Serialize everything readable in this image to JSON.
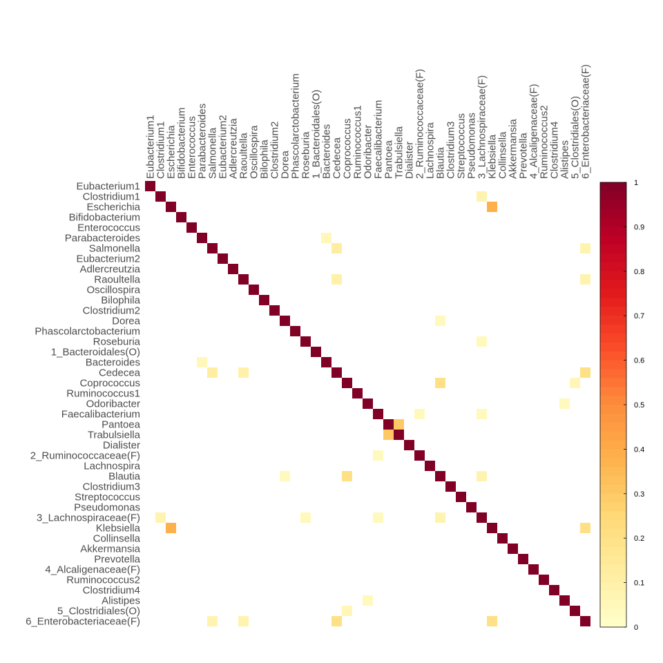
{
  "chart_data": {
    "type": "heatmap",
    "title": "",
    "xlabel": "",
    "ylabel": "",
    "labels": [
      "Eubacterium1",
      "Clostridium1",
      "Escherichia",
      "Bifidobacterium",
      "Enterococcus",
      "Parabacteroides",
      "Salmonella",
      "Eubacterium2",
      "Adlercreutzia",
      "Raoultella",
      "Oscillospira",
      "Bilophila",
      "Clostridium2",
      "Dorea",
      "Phascolarctobacterium",
      "Roseburia",
      "1_Bacteroidales(O)",
      "Bacteroides",
      "Cedecea",
      "Coprococcus",
      "Ruminococcus1",
      "Odoribacter",
      "Faecalibacterium",
      "Pantoea",
      "Trabulsiella",
      "Dialister",
      "2_Ruminococcaceae(F)",
      "Lachnospira",
      "Blautia",
      "Clostridium3",
      "Streptococcus",
      "Pseudomonas",
      "3_Lachnospiraceae(F)",
      "Klebsiella",
      "Collinsella",
      "Akkermansia",
      "Prevotella",
      "4_Alcaligenaceae(F)",
      "Ruminococcus2",
      "Clostridium4",
      "Alistipes",
      "5_Clostridiales(O)",
      "6_Enterobacteriaceae(F)"
    ],
    "diagonal": 1,
    "cells": [
      {
        "row": "Clostridium1",
        "col": "3_Lachnospiraceae(F)",
        "value": 0.08
      },
      {
        "row": "Escherichia",
        "col": "Klebsiella",
        "value": 0.38
      },
      {
        "row": "Parabacteroides",
        "col": "Bacteroides",
        "value": 0.05
      },
      {
        "row": "Salmonella",
        "col": "Cedecea",
        "value": 0.12
      },
      {
        "row": "Salmonella",
        "col": "6_Enterobacteriaceae(F)",
        "value": 0.08
      },
      {
        "row": "Raoultella",
        "col": "Cedecea",
        "value": 0.1
      },
      {
        "row": "Raoultella",
        "col": "6_Enterobacteriaceae(F)",
        "value": 0.08
      },
      {
        "row": "Dorea",
        "col": "Blautia",
        "value": 0.04
      },
      {
        "row": "Roseburia",
        "col": "3_Lachnospiraceae(F)",
        "value": 0.04
      },
      {
        "row": "Bacteroides",
        "col": "Parabacteroides",
        "value": 0.05
      },
      {
        "row": "Cedecea",
        "col": "Salmonella",
        "value": 0.12
      },
      {
        "row": "Cedecea",
        "col": "Raoultella",
        "value": 0.1
      },
      {
        "row": "Cedecea",
        "col": "6_Enterobacteriaceae(F)",
        "value": 0.2
      },
      {
        "row": "Coprococcus",
        "col": "Blautia",
        "value": 0.2
      },
      {
        "row": "Coprococcus",
        "col": "5_Clostridiales(O)",
        "value": 0.06
      },
      {
        "row": "Odoribacter",
        "col": "Alistipes",
        "value": 0.04
      },
      {
        "row": "Faecalibacterium",
        "col": "2_Ruminococcaceae(F)",
        "value": 0.04
      },
      {
        "row": "Faecalibacterium",
        "col": "3_Lachnospiraceae(F)",
        "value": 0.04
      },
      {
        "row": "Pantoea",
        "col": "Trabulsiella",
        "value": 0.3
      },
      {
        "row": "Trabulsiella",
        "col": "Pantoea",
        "value": 0.3
      },
      {
        "row": "2_Ruminococcaceae(F)",
        "col": "Faecalibacterium",
        "value": 0.04
      },
      {
        "row": "Blautia",
        "col": "Dorea",
        "value": 0.04
      },
      {
        "row": "Blautia",
        "col": "Coprococcus",
        "value": 0.2
      },
      {
        "row": "Blautia",
        "col": "3_Lachnospiraceae(F)",
        "value": 0.08
      },
      {
        "row": "3_Lachnospiraceae(F)",
        "col": "Clostridium1",
        "value": 0.08
      },
      {
        "row": "3_Lachnospiraceae(F)",
        "col": "Roseburia",
        "value": 0.04
      },
      {
        "row": "3_Lachnospiraceae(F)",
        "col": "Faecalibacterium",
        "value": 0.04
      },
      {
        "row": "3_Lachnospiraceae(F)",
        "col": "Blautia",
        "value": 0.08
      },
      {
        "row": "Klebsiella",
        "col": "Escherichia",
        "value": 0.38
      },
      {
        "row": "Klebsiella",
        "col": "6_Enterobacteriaceae(F)",
        "value": 0.2
      },
      {
        "row": "Alistipes",
        "col": "Odoribacter",
        "value": 0.04
      },
      {
        "row": "5_Clostridiales(O)",
        "col": "Coprococcus",
        "value": 0.06
      },
      {
        "row": "6_Enterobacteriaceae(F)",
        "col": "Salmonella",
        "value": 0.08
      },
      {
        "row": "6_Enterobacteriaceae(F)",
        "col": "Raoultella",
        "value": 0.08
      },
      {
        "row": "6_Enterobacteriaceae(F)",
        "col": "Cedecea",
        "value": 0.2
      },
      {
        "row": "6_Enterobacteriaceae(F)",
        "col": "Klebsiella",
        "value": 0.2
      }
    ],
    "colorbar": {
      "range": [
        0,
        1
      ],
      "ticks": [
        "0",
        "0.1",
        "0.2",
        "0.3",
        "0.4",
        "0.5",
        "0.6",
        "0.7",
        "0.8",
        "0.9",
        "1"
      ],
      "placement": "right",
      "colors": [
        "#ffffcc",
        "#ffeda0",
        "#fed976",
        "#feb24c",
        "#fd8d3c",
        "#fc4e2a",
        "#e31a1c",
        "#bd0026",
        "#800026"
      ]
    },
    "grid": false
  }
}
